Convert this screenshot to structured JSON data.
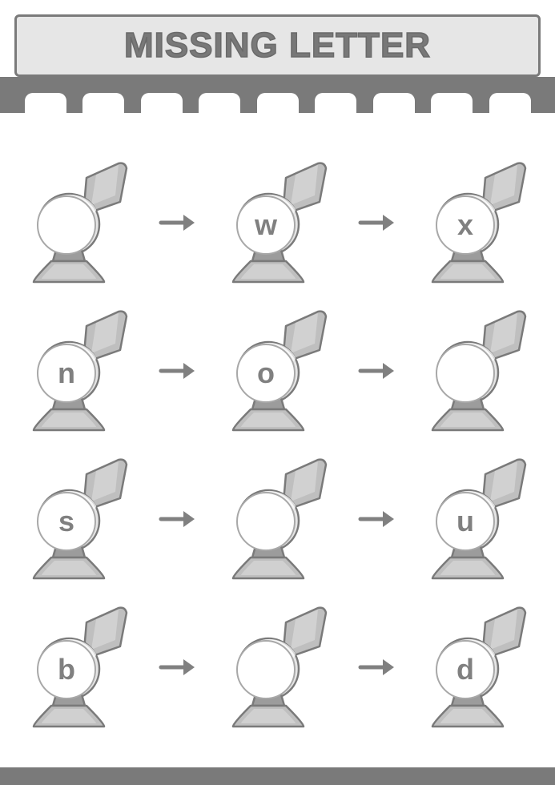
{
  "title": "Missing Letter",
  "colors": {
    "frame": "#7a7a7a",
    "titleBg": "#e6e6e6",
    "titleText": "#787878",
    "hornBody": "#bfbfbf",
    "hornDark": "#9c9c9c",
    "hornOutline": "#7a7a7a",
    "hornHighlight": "#d8d8d8",
    "arrow": "#808080",
    "bubbleFill": "#ffffff",
    "bubbleStroke": "#a8a8a8",
    "letter": "#808080"
  },
  "notchCount": 9,
  "rows": [
    {
      "cells": [
        "",
        "w",
        "x"
      ]
    },
    {
      "cells": [
        "n",
        "o",
        ""
      ]
    },
    {
      "cells": [
        "s",
        "",
        "u"
      ]
    },
    {
      "cells": [
        "b",
        "",
        "d"
      ]
    }
  ]
}
